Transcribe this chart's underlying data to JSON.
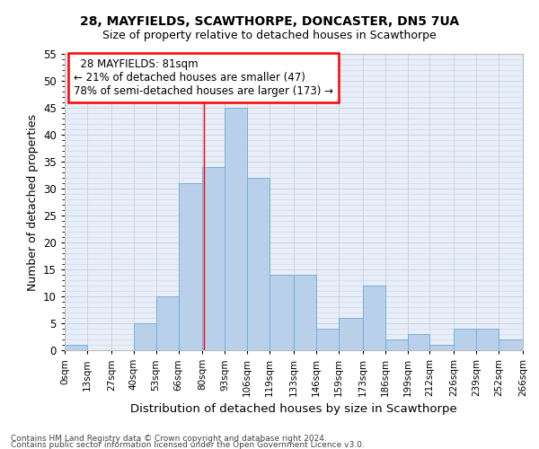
{
  "title1": "28, MAYFIELDS, SCAWTHORPE, DONCASTER, DN5 7UA",
  "title2": "Size of property relative to detached houses in Scawthorpe",
  "xlabel": "Distribution of detached houses by size in Scawthorpe",
  "ylabel": "Number of detached properties",
  "footer1": "Contains HM Land Registry data © Crown copyright and database right 2024.",
  "footer2": "Contains public sector information licensed under the Open Government Licence v3.0.",
  "annotation_line1": "28 MAYFIELDS: 81sqm",
  "annotation_line2": "← 21% of detached houses are smaller (47)",
  "annotation_line3": "78% of semi-detached houses are larger (173) →",
  "bar_values": [
    1,
    0,
    0,
    5,
    10,
    31,
    34,
    45,
    32,
    14,
    14,
    4,
    6,
    12,
    2,
    3,
    1,
    4,
    4,
    2
  ],
  "bin_edges": [
    0,
    13,
    27,
    40,
    53,
    66,
    80,
    93,
    106,
    119,
    133,
    146,
    159,
    173,
    186,
    199,
    212,
    226,
    239,
    252,
    266
  ],
  "bin_labels": [
    "0sqm",
    "13sqm",
    "27sqm",
    "40sqm",
    "53sqm",
    "66sqm",
    "80sqm",
    "93sqm",
    "106sqm",
    "119sqm",
    "133sqm",
    "146sqm",
    "159sqm",
    "173sqm",
    "186sqm",
    "199sqm",
    "212sqm",
    "226sqm",
    "239sqm",
    "252sqm",
    "266sqm"
  ],
  "bar_color": "#b8d0ea",
  "bar_edge_color": "#7aaed4",
  "grid_color": "#c8d4e8",
  "bg_color": "#e8eef8",
  "redline_x": 81,
  "annotation_box_color": "white",
  "annotation_box_edge": "red",
  "ylim": [
    0,
    55
  ],
  "yticks": [
    0,
    5,
    10,
    15,
    20,
    25,
    30,
    35,
    40,
    45,
    50,
    55
  ],
  "fig_width": 6.0,
  "fig_height": 5.0,
  "dpi": 100
}
